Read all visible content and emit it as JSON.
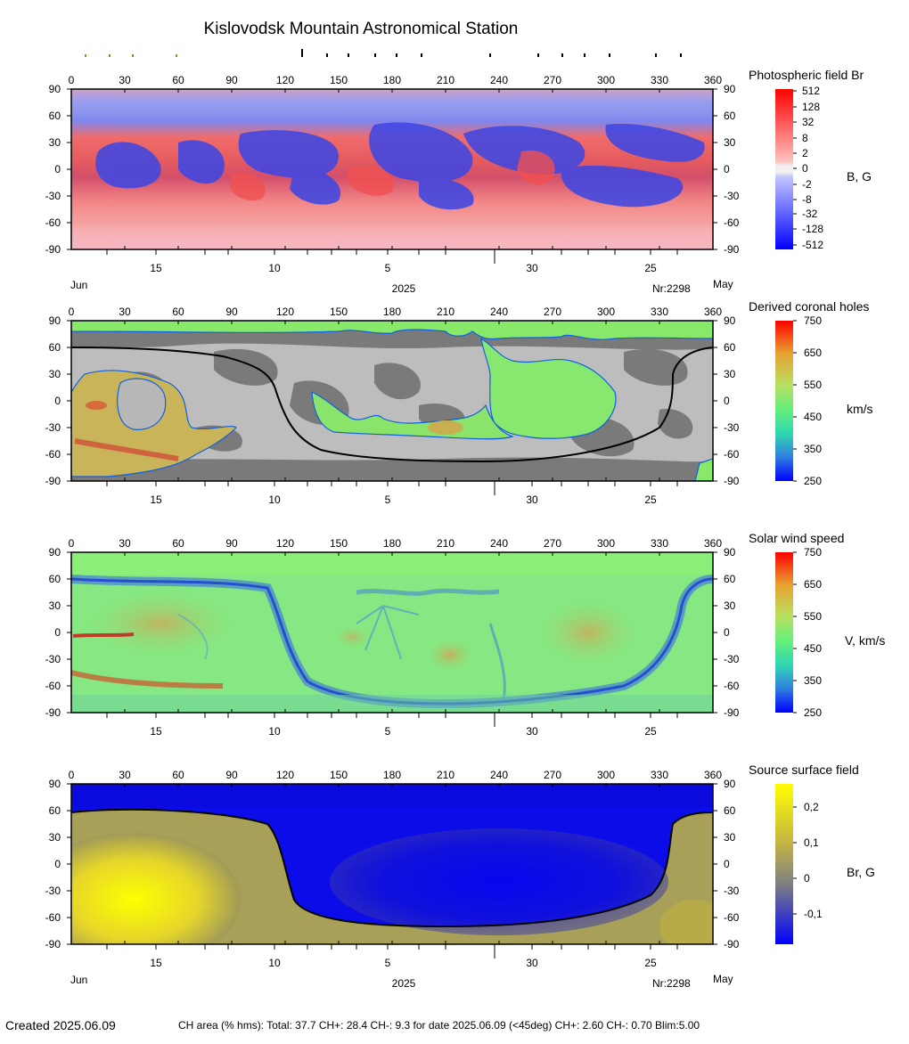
{
  "title": "Kislovodsk Mountain Astronomical Station",
  "footer": {
    "created": "Created  2025.06.09",
    "ch_area": "CH area (% hms): Total: 37.7 CH+: 28.4   CH-: 9.3 for date 2025.06.09 (<45deg) CH+: 2.60    CH-: 0.70 Blim:5.00"
  },
  "axes": {
    "longitude_ticks": [
      "0",
      "30",
      "60",
      "90",
      "120",
      "150",
      "180",
      "210",
      "240",
      "270",
      "300",
      "330",
      "360"
    ],
    "latitude_ticks": [
      "90",
      "60",
      "30",
      "0",
      "-30",
      "-60",
      "-90"
    ],
    "day_ticks": [
      "15",
      "10",
      "5",
      "30",
      "25"
    ],
    "left_month": "Jun",
    "right_month": "May",
    "year": "2025",
    "rotation": "Nr:2298"
  },
  "chart_data": [
    {
      "type": "heatmap",
      "label": "Photospheric field Br",
      "unit": "B, G",
      "colorbar_ticks": [
        "512",
        "128",
        "32",
        "8",
        "2",
        "0",
        "-2",
        "-8",
        "-32",
        "-128",
        "-512"
      ],
      "colors": {
        "positive": "#ff1010",
        "negative": "#1010ff",
        "zero": "#f0f0f0"
      },
      "xlim": [
        0,
        360
      ],
      "ylim": [
        -90,
        90
      ]
    },
    {
      "type": "heatmap",
      "label": "Derived coronal holes",
      "unit": "km/s",
      "colorbar_ticks": [
        "750",
        "650",
        "550",
        "450",
        "350",
        "250"
      ],
      "neutral_line": [
        [
          0,
          60
        ],
        [
          40,
          60
        ],
        [
          90,
          55
        ],
        [
          120,
          40
        ],
        [
          128,
          20
        ],
        [
          135,
          -20
        ],
        [
          150,
          -45
        ],
        [
          180,
          -60
        ],
        [
          210,
          -65
        ],
        [
          240,
          -68
        ],
        [
          280,
          -62
        ],
        [
          310,
          -45
        ],
        [
          330,
          -20
        ],
        [
          335,
          5
        ],
        [
          340,
          35
        ],
        [
          350,
          55
        ],
        [
          360,
          60
        ]
      ],
      "xlim": [
        0,
        360
      ],
      "ylim": [
        -90,
        90
      ]
    },
    {
      "type": "heatmap",
      "label": "Solar wind speed",
      "unit": "V, km/s",
      "colorbar_ticks": [
        "750",
        "650",
        "550",
        "450",
        "350",
        "250"
      ],
      "xlim": [
        0,
        360
      ],
      "ylim": [
        -90,
        90
      ]
    },
    {
      "type": "heatmap",
      "label": "Source surface field",
      "unit": "Br, G",
      "colorbar_ticks": [
        "0,2",
        "0,1",
        "0",
        "-0,1"
      ],
      "neutral_line": [
        [
          0,
          60
        ],
        [
          40,
          62
        ],
        [
          90,
          56
        ],
        [
          112,
          48
        ],
        [
          120,
          30
        ],
        [
          124,
          0
        ],
        [
          128,
          -30
        ],
        [
          140,
          -50
        ],
        [
          165,
          -60
        ],
        [
          200,
          -68
        ],
        [
          240,
          -68
        ],
        [
          280,
          -62
        ],
        [
          310,
          -48
        ],
        [
          330,
          -25
        ],
        [
          335,
          0
        ],
        [
          338,
          30
        ],
        [
          345,
          50
        ],
        [
          360,
          58
        ]
      ],
      "xlim": [
        0,
        360
      ],
      "ylim": [
        -90,
        90
      ]
    }
  ]
}
